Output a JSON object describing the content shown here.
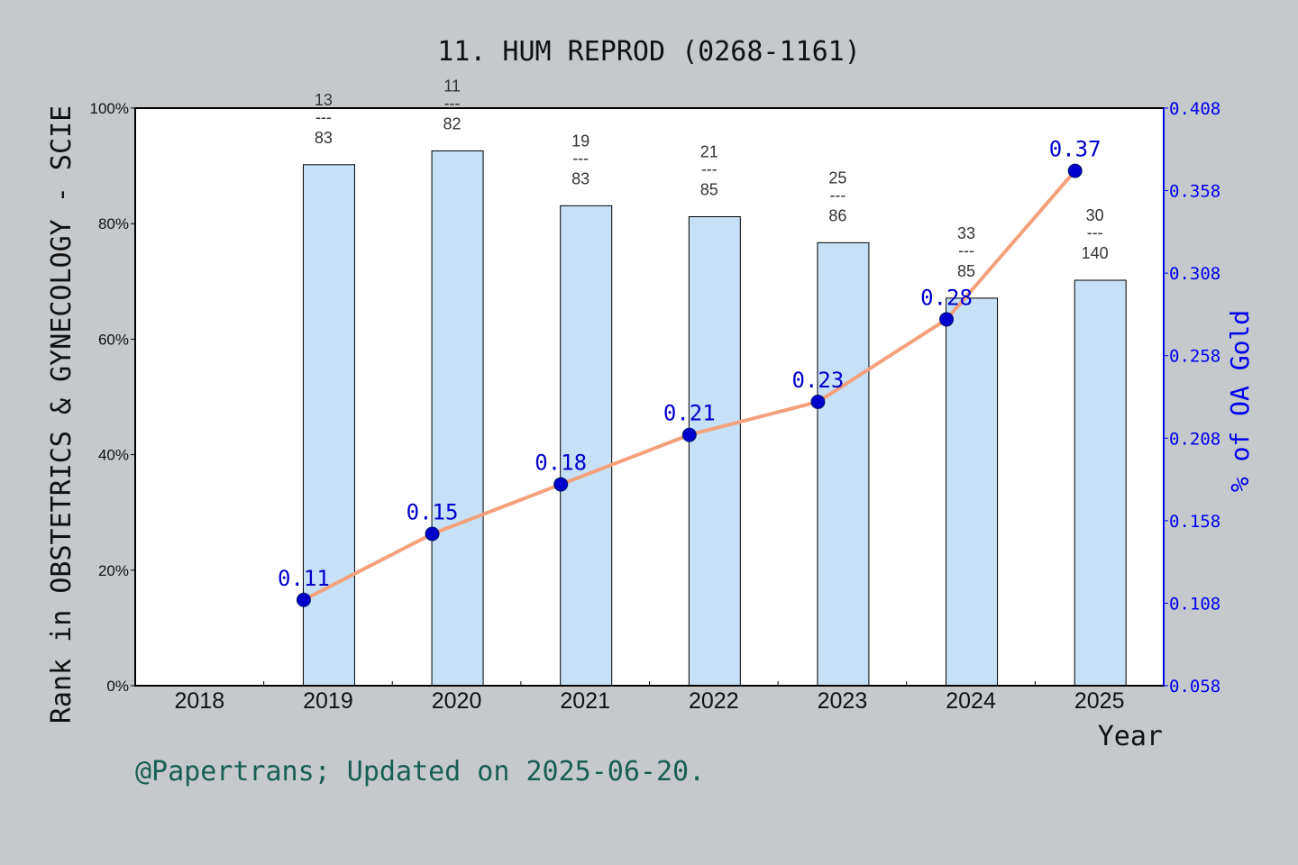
{
  "chart_data": {
    "type": "bar",
    "title": "11. HUM REPROD (0268-1161)",
    "xlabel": "Year",
    "ylabel": "Rank in OBSTETRICS & GYNECOLOGY - SCIE",
    "y2label": "% of OA Gold",
    "categories": [
      "2018",
      "2019",
      "2020",
      "2021",
      "2022",
      "2023",
      "2024",
      "2025"
    ],
    "ylim": [
      0,
      100
    ],
    "yticks": [
      "0%",
      "20%",
      "40%",
      "60%",
      "80%",
      "100%"
    ],
    "y2lim": [
      0.058,
      0.408
    ],
    "y2ticks": [
      "0.058",
      "0.108",
      "0.158",
      "0.208",
      "0.258",
      "0.308",
      "0.358",
      "0.408"
    ],
    "bars": [
      {
        "year": "2019",
        "value": 90.2,
        "rank": "13",
        "total": "83"
      },
      {
        "year": "2020",
        "value": 92.6,
        "rank": "11",
        "total": "82"
      },
      {
        "year": "2021",
        "value": 83.1,
        "rank": "19",
        "total": "83"
      },
      {
        "year": "2022",
        "value": 81.2,
        "rank": "21",
        "total": "85"
      },
      {
        "year": "2023",
        "value": 76.7,
        "rank": "25",
        "total": "86"
      },
      {
        "year": "2024",
        "value": 67.1,
        "rank": "33",
        "total": "85"
      },
      {
        "year": "2025",
        "value": 70.2,
        "rank": "30",
        "total": "140"
      }
    ],
    "rank_separator": "---",
    "oa_series": [
      {
        "year": "2019",
        "value": 0.11,
        "label": "0.11"
      },
      {
        "year": "2020",
        "value": 0.15,
        "label": "0.15"
      },
      {
        "year": "2021",
        "value": 0.18,
        "label": "0.18"
      },
      {
        "year": "2022",
        "value": 0.21,
        "label": "0.21"
      },
      {
        "year": "2023",
        "value": 0.23,
        "label": "0.23"
      },
      {
        "year": "2024",
        "value": 0.28,
        "label": "0.28"
      },
      {
        "year": "2025",
        "value": 0.37,
        "label": "0.37"
      }
    ],
    "colors": {
      "background": "#c5c9cc",
      "bar_fill": "#c5e0f7",
      "line": "#f4a07a",
      "marker": "#0000cc",
      "right_axis": "#0000ee",
      "footer": "#175e54"
    }
  },
  "footer": "@Papertrans; Updated on 2025-06-20."
}
